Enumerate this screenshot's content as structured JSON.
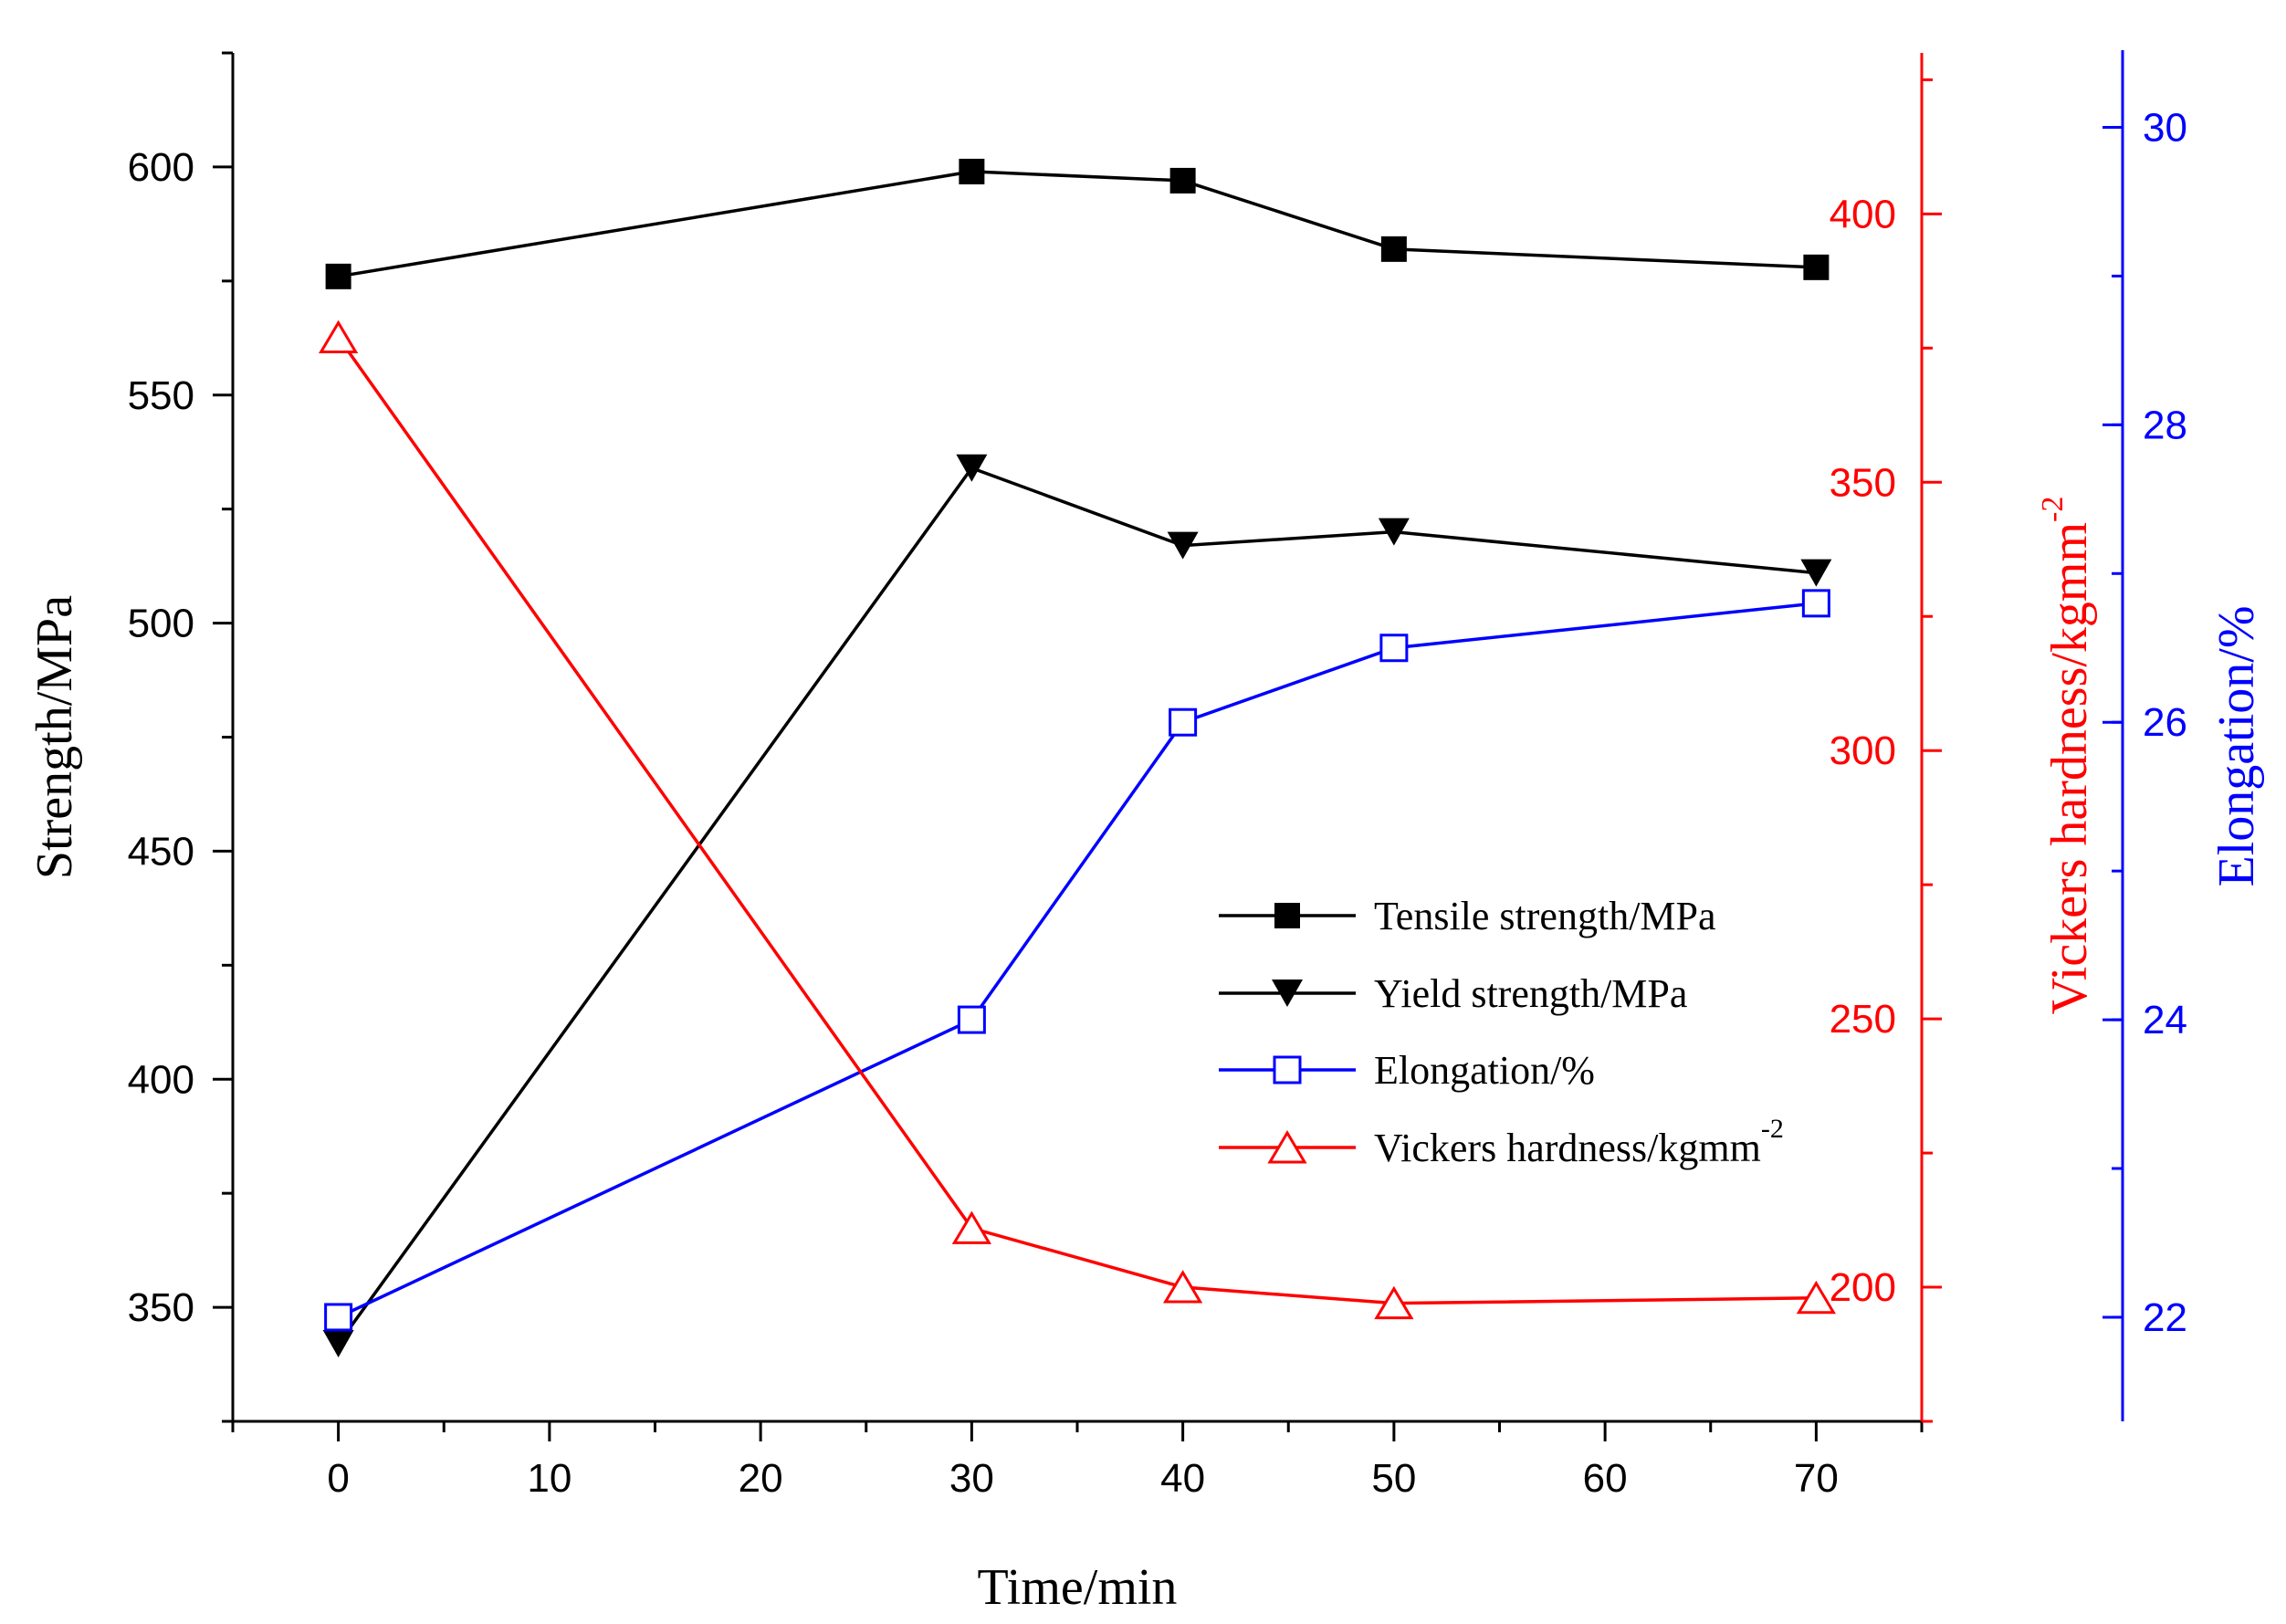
{
  "chart_data": {
    "type": "line",
    "title": "",
    "xlabel": "Time/min",
    "xlim": [
      -5,
      75
    ],
    "xticks": [
      0,
      10,
      20,
      30,
      40,
      50,
      60,
      70
    ],
    "grid": false,
    "legend_position": "center-right",
    "y_axes": [
      {
        "id": "left",
        "label": "Strength/MPa",
        "color": "#000000",
        "lim": [
          325,
          625
        ],
        "ticks": [
          350,
          400,
          450,
          500,
          550,
          600
        ]
      },
      {
        "id": "right_red",
        "label": "Vickers hardness/kgmm",
        "label_sup": "-2",
        "color": "#ff0000",
        "lim": [
          175,
          430
        ],
        "ticks": [
          200,
          250,
          300,
          350,
          400
        ]
      },
      {
        "id": "right_blue",
        "label": "Elongation/%",
        "color": "#0000ff",
        "lim": [
          21.3,
          30.5
        ],
        "ticks": [
          22,
          24,
          26,
          28,
          30
        ]
      }
    ],
    "series": [
      {
        "name": "Tensile strength/MPa",
        "axis": "left",
        "color": "#000000",
        "marker": "filled-square",
        "x": [
          0,
          30,
          40,
          50,
          70
        ],
        "values": [
          576,
          599,
          597,
          582,
          578
        ]
      },
      {
        "name": "Yield strength/MPa",
        "axis": "left",
        "color": "#000000",
        "marker": "filled-down-triangle",
        "x": [
          0,
          30,
          40,
          50,
          70
        ],
        "values": [
          342,
          534,
          517,
          520,
          511
        ]
      },
      {
        "name": "Elongation/%",
        "axis": "right_blue",
        "color": "#0000ff",
        "marker": "open-square",
        "x": [
          0,
          30,
          40,
          50,
          70
        ],
        "values": [
          22.0,
          24.0,
          26.0,
          26.5,
          26.8
        ]
      },
      {
        "name": "Vickers hardness/kgmm",
        "name_sup": "-2",
        "axis": "right_red",
        "color": "#ff0000",
        "marker": "open-triangle",
        "x": [
          0,
          30,
          40,
          50,
          70
        ],
        "values": [
          377,
          211,
          200,
          197,
          198
        ]
      }
    ]
  }
}
